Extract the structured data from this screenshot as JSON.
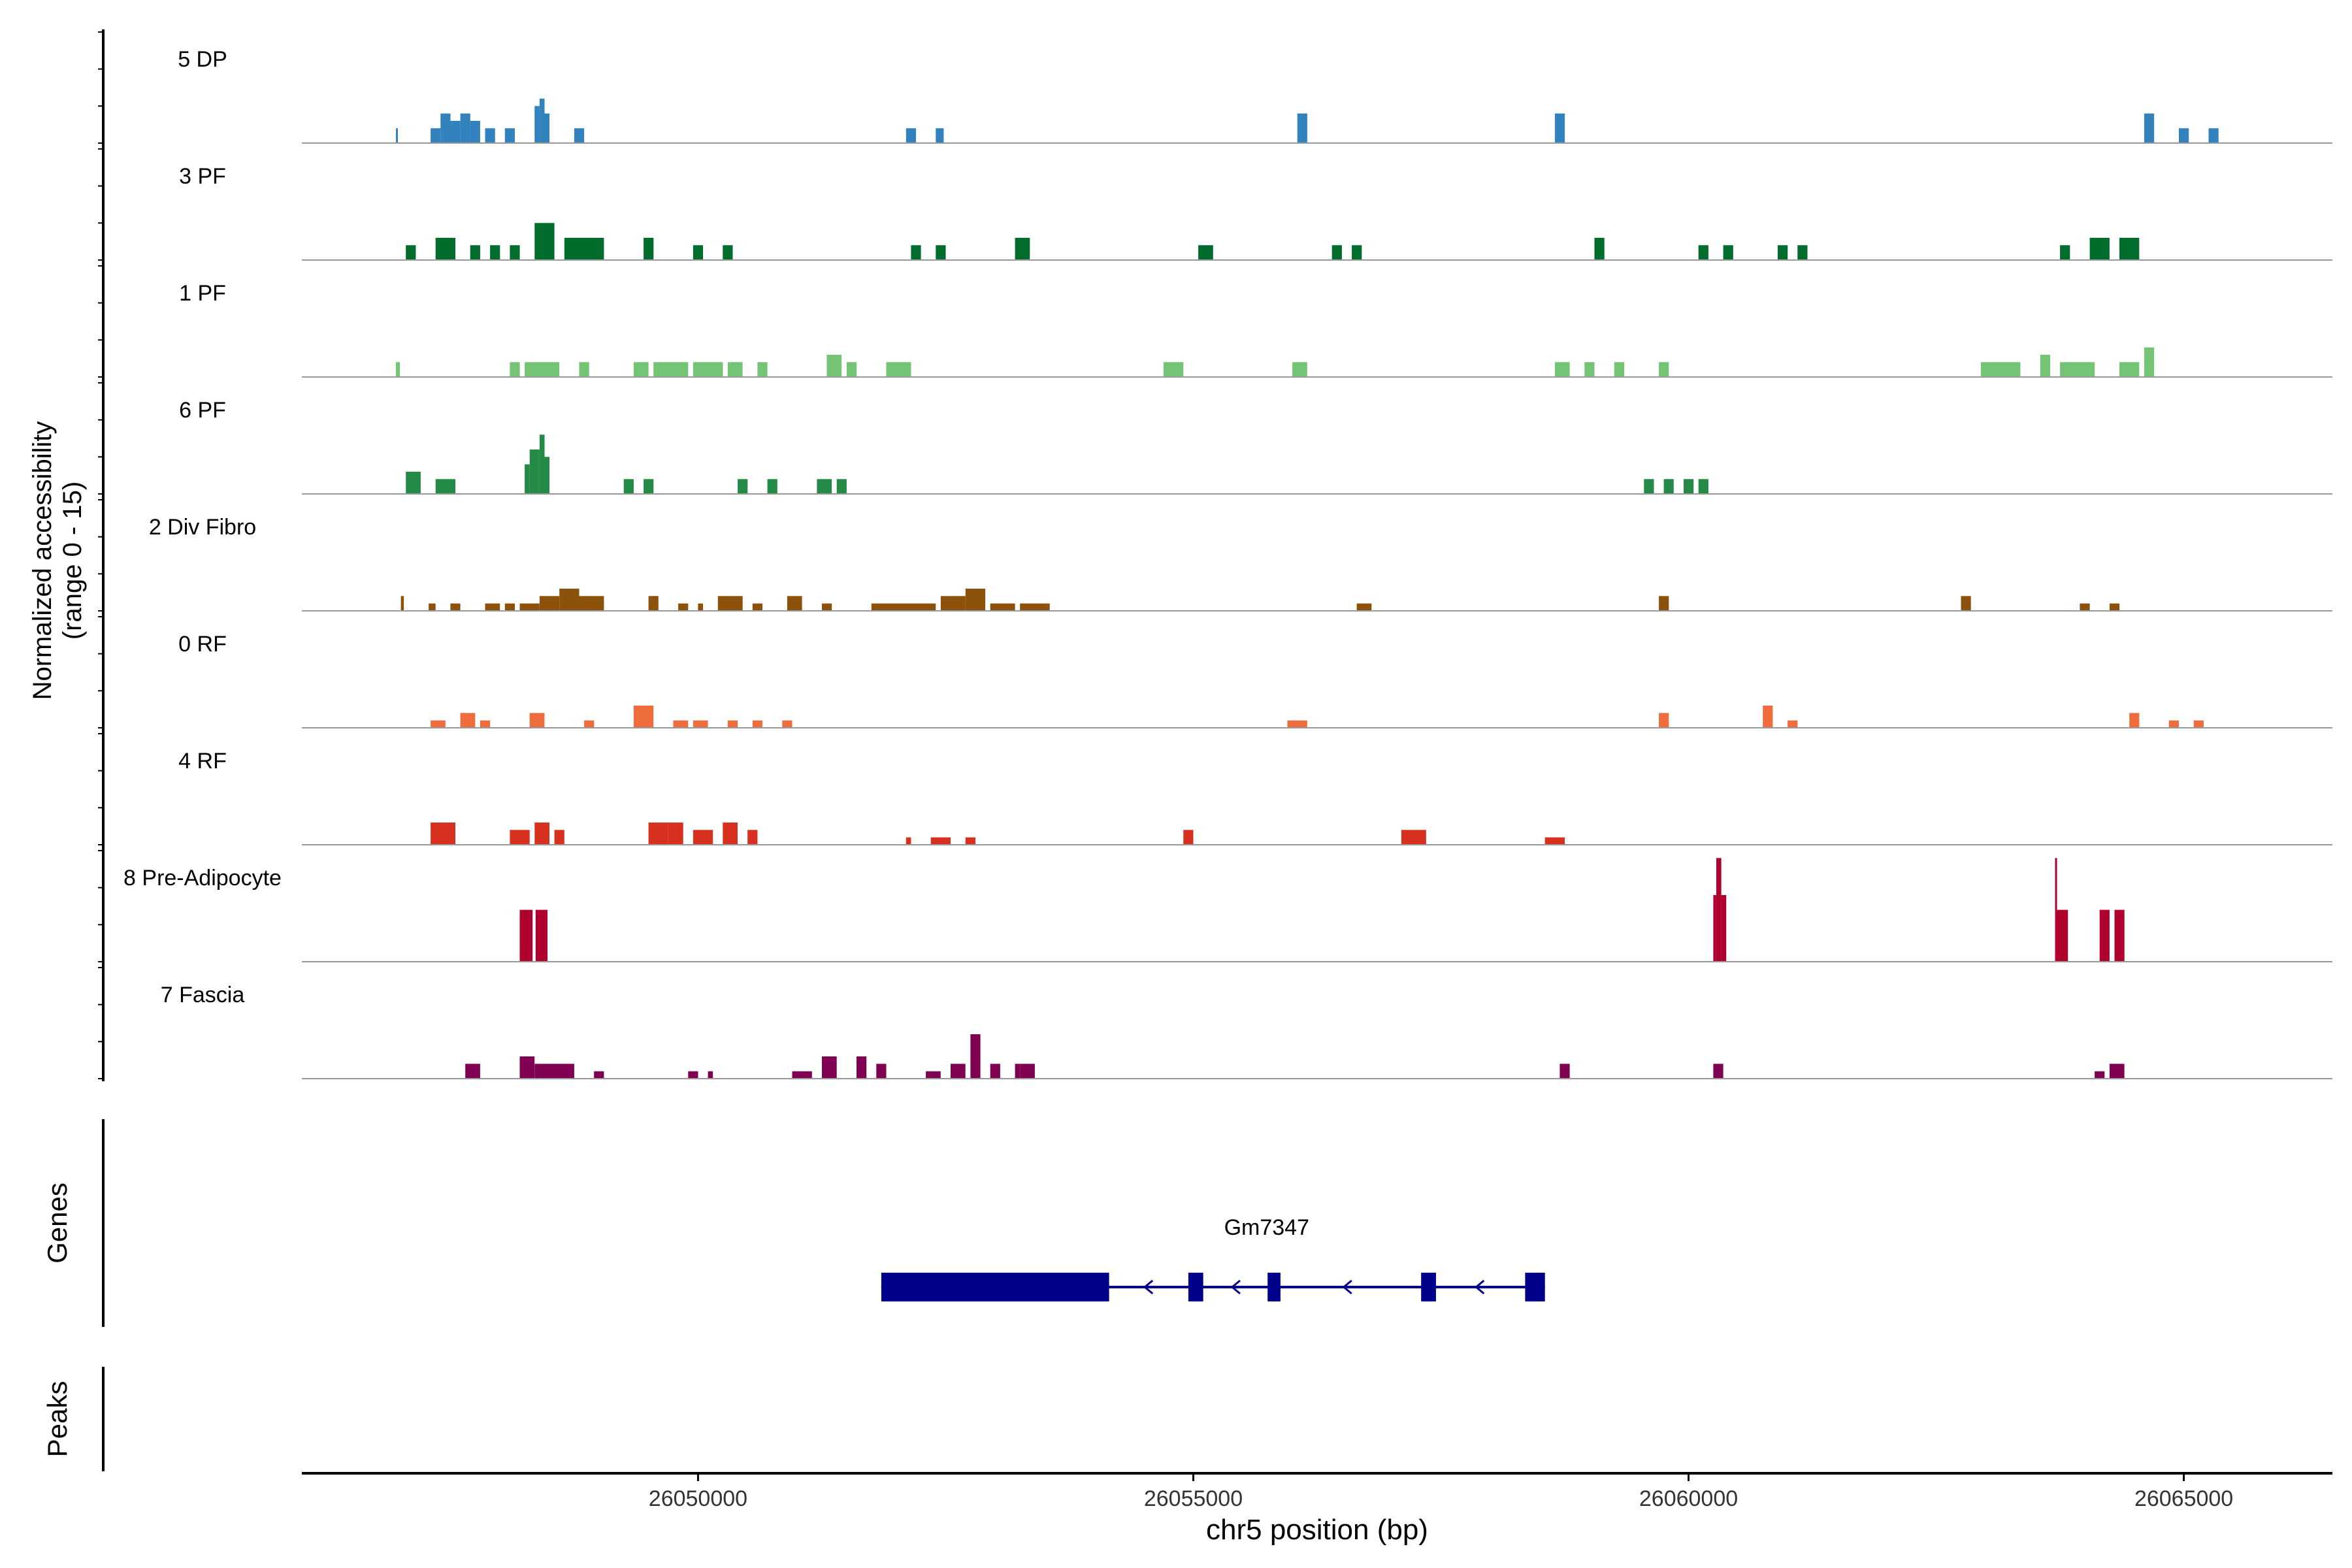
{
  "chart_data": {
    "type": "area",
    "title": "",
    "ylabel": "Normalized accessibility",
    "ylabel_range": "(range 0 - 15)",
    "ylim": [
      0,
      15
    ],
    "xlabel": "chr5 position (bp)",
    "xlim": [
      26046000,
      26066500
    ],
    "xticks": [
      26050000,
      26055000,
      26060000,
      26065000
    ],
    "xtick_labels": [
      "26050000",
      "26055000",
      "26060000",
      "26065000"
    ],
    "grid": false,
    "legend": "none",
    "tracks": [
      {
        "name": "5 DP",
        "color": "#3182bd",
        "segments": [
          [
            26046950,
            26046970,
            2
          ],
          [
            26047300,
            26047400,
            2
          ],
          [
            26047400,
            26047500,
            4
          ],
          [
            26047500,
            26047600,
            3
          ],
          [
            26047600,
            26047700,
            4
          ],
          [
            26047700,
            26047800,
            3
          ],
          [
            26047850,
            26047950,
            2
          ],
          [
            26048050,
            26048150,
            2
          ],
          [
            26048350,
            26048400,
            5
          ],
          [
            26048400,
            26048450,
            6
          ],
          [
            26048450,
            26048500,
            4
          ],
          [
            26048750,
            26048850,
            2
          ],
          [
            26052100,
            26052200,
            2
          ],
          [
            26052400,
            26052480,
            2
          ],
          [
            26056050,
            26056150,
            4
          ],
          [
            26058650,
            26058750,
            4
          ],
          [
            26064600,
            26064700,
            4
          ],
          [
            26064950,
            26065050,
            2
          ],
          [
            26065250,
            26065350,
            2
          ]
        ]
      },
      {
        "name": "3 PF",
        "color": "#006d2c",
        "segments": [
          [
            26047050,
            26047150,
            2
          ],
          [
            26047350,
            26047550,
            3
          ],
          [
            26047700,
            26047800,
            2
          ],
          [
            26047900,
            26048000,
            2
          ],
          [
            26048100,
            26048200,
            2
          ],
          [
            26048350,
            26048550,
            5
          ],
          [
            26048650,
            26048750,
            3
          ],
          [
            26048750,
            26049050,
            3
          ],
          [
            26049450,
            26049550,
            3
          ],
          [
            26049950,
            26050050,
            2
          ],
          [
            26050250,
            26050350,
            2
          ],
          [
            26052150,
            26052250,
            2
          ],
          [
            26052400,
            26052500,
            2
          ],
          [
            26053200,
            26053350,
            3
          ],
          [
            26055050,
            26055200,
            2
          ],
          [
            26056400,
            26056500,
            2
          ],
          [
            26056600,
            26056700,
            2
          ],
          [
            26059050,
            26059150,
            3
          ],
          [
            26060100,
            26060200,
            2
          ],
          [
            26060350,
            26060450,
            2
          ],
          [
            26060900,
            26061000,
            2
          ],
          [
            26061100,
            26061200,
            2
          ],
          [
            26063750,
            26063850,
            2
          ],
          [
            26064050,
            26064250,
            3
          ],
          [
            26064350,
            26064550,
            3
          ]
        ]
      },
      {
        "name": "1 PF",
        "color": "#74c476",
        "segments": [
          [
            26046950,
            26046990,
            2
          ],
          [
            26048100,
            26048200,
            2
          ],
          [
            26048250,
            26048600,
            2
          ],
          [
            26048800,
            26048900,
            2
          ],
          [
            26049350,
            26049500,
            2
          ],
          [
            26049550,
            26049900,
            2
          ],
          [
            26049950,
            26050250,
            2
          ],
          [
            26050300,
            26050450,
            2
          ],
          [
            26050600,
            26050700,
            2
          ],
          [
            26051300,
            26051450,
            3
          ],
          [
            26051500,
            26051600,
            2
          ],
          [
            26051900,
            26052150,
            2
          ],
          [
            26054700,
            26054900,
            2
          ],
          [
            26056000,
            26056150,
            2
          ],
          [
            26058650,
            26058800,
            2
          ],
          [
            26058950,
            26059050,
            2
          ],
          [
            26059250,
            26059350,
            2
          ],
          [
            26059700,
            26059800,
            2
          ],
          [
            26062950,
            26063350,
            2
          ],
          [
            26063550,
            26063650,
            3
          ],
          [
            26063750,
            26064100,
            2
          ],
          [
            26064350,
            26064550,
            2
          ],
          [
            26064600,
            26064700,
            4
          ]
        ]
      },
      {
        "name": "6 PF",
        "color": "#238b45",
        "segments": [
          [
            26047050,
            26047200,
            3
          ],
          [
            26047350,
            26047550,
            2
          ],
          [
            26048250,
            26048300,
            4
          ],
          [
            26048300,
            26048400,
            6
          ],
          [
            26048400,
            26048450,
            8
          ],
          [
            26048450,
            26048500,
            5
          ],
          [
            26049250,
            26049350,
            2
          ],
          [
            26049450,
            26049550,
            2
          ],
          [
            26050400,
            26050500,
            2
          ],
          [
            26050700,
            26050800,
            2
          ],
          [
            26051200,
            26051350,
            2
          ],
          [
            26051400,
            26051500,
            2
          ],
          [
            26059550,
            26059650,
            2
          ],
          [
            26059750,
            26059850,
            2
          ],
          [
            26059950,
            26060050,
            2
          ],
          [
            26060100,
            26060200,
            2
          ]
        ]
      },
      {
        "name": "2 Div Fibro",
        "color": "#8c510a",
        "segments": [
          [
            26047000,
            26047030,
            2
          ],
          [
            26047280,
            26047350,
            1
          ],
          [
            26047500,
            26047600,
            1
          ],
          [
            26047850,
            26048000,
            1
          ],
          [
            26048050,
            26048150,
            1
          ],
          [
            26048200,
            26048400,
            1
          ],
          [
            26048400,
            26048600,
            2
          ],
          [
            26048600,
            26048800,
            3
          ],
          [
            26048800,
            26049050,
            2
          ],
          [
            26049500,
            26049600,
            2
          ],
          [
            26049800,
            26049900,
            1
          ],
          [
            26050000,
            26050050,
            1
          ],
          [
            26050200,
            26050450,
            2
          ],
          [
            26050550,
            26050650,
            1
          ],
          [
            26050900,
            26051050,
            2
          ],
          [
            26051250,
            26051350,
            1
          ],
          [
            26051750,
            26052400,
            1
          ],
          [
            26052450,
            26052700,
            2
          ],
          [
            26052700,
            26052900,
            3
          ],
          [
            26052950,
            26053200,
            1
          ],
          [
            26053250,
            26053550,
            1
          ],
          [
            26056650,
            26056800,
            1
          ],
          [
            26059700,
            26059800,
            2
          ],
          [
            26062750,
            26062850,
            2
          ],
          [
            26063950,
            26064050,
            1
          ],
          [
            26064250,
            26064350,
            1
          ]
        ]
      },
      {
        "name": "0 RF",
        "color": "#ef6c3d",
        "segments": [
          [
            26047300,
            26047450,
            1
          ],
          [
            26047600,
            26047750,
            2
          ],
          [
            26047800,
            26047900,
            1
          ],
          [
            26048300,
            26048450,
            2
          ],
          [
            26048850,
            26048950,
            1
          ],
          [
            26049350,
            26049550,
            3
          ],
          [
            26049750,
            26049900,
            1
          ],
          [
            26049950,
            26050100,
            1
          ],
          [
            26050300,
            26050400,
            1
          ],
          [
            26050550,
            26050650,
            1
          ],
          [
            26050850,
            26050950,
            1
          ],
          [
            26055950,
            26056150,
            1
          ],
          [
            26059700,
            26059800,
            2
          ],
          [
            26060750,
            26060850,
            3
          ],
          [
            26061000,
            26061100,
            1
          ],
          [
            26064450,
            26064550,
            2
          ],
          [
            26064850,
            26064950,
            1
          ],
          [
            26065100,
            26065200,
            1
          ]
        ]
      },
      {
        "name": "4 RF",
        "color": "#d7301f",
        "segments": [
          [
            26047300,
            26047550,
            3
          ],
          [
            26048100,
            26048300,
            2
          ],
          [
            26048350,
            26048500,
            3
          ],
          [
            26048550,
            26048650,
            2
          ],
          [
            26049500,
            26049700,
            3
          ],
          [
            26049700,
            26049850,
            3
          ],
          [
            26049950,
            26050150,
            2
          ],
          [
            26050250,
            26050400,
            3
          ],
          [
            26050500,
            26050600,
            2
          ],
          [
            26052100,
            26052150,
            1
          ],
          [
            26052350,
            26052550,
            1
          ],
          [
            26052700,
            26052800,
            1
          ],
          [
            26054900,
            26055000,
            2
          ],
          [
            26057100,
            26057350,
            2
          ],
          [
            26058550,
            26058750,
            1
          ]
        ]
      },
      {
        "name": "8 Pre-Adipocyte",
        "color": "#b0002e",
        "segments": [
          [
            26048200,
            26048330,
            7
          ],
          [
            26048360,
            26048480,
            7
          ],
          [
            26060250,
            26060280,
            9
          ],
          [
            26060280,
            26060330,
            14
          ],
          [
            26060330,
            26060380,
            9
          ],
          [
            26063700,
            26063720,
            14
          ],
          [
            26063720,
            26063830,
            7
          ],
          [
            26064150,
            26064250,
            7
          ],
          [
            26064300,
            26064400,
            7
          ]
        ]
      },
      {
        "name": "7 Fascia",
        "color": "#800054",
        "segments": [
          [
            26047650,
            26047800,
            2
          ],
          [
            26048200,
            26048350,
            3
          ],
          [
            26048350,
            26048750,
            2
          ],
          [
            26048950,
            26049050,
            1
          ],
          [
            26049900,
            26050000,
            1
          ],
          [
            26050100,
            26050150,
            1
          ],
          [
            26050950,
            26051150,
            1
          ],
          [
            26051250,
            26051400,
            3
          ],
          [
            26051600,
            26051700,
            3
          ],
          [
            26051800,
            26051900,
            2
          ],
          [
            26052300,
            26052450,
            1
          ],
          [
            26052550,
            26052700,
            2
          ],
          [
            26052750,
            26052850,
            6
          ],
          [
            26052950,
            26053050,
            2
          ],
          [
            26053200,
            26053250,
            2
          ],
          [
            26053250,
            26053400,
            2
          ],
          [
            26058700,
            26058800,
            2
          ],
          [
            26060250,
            26060350,
            2
          ],
          [
            26064100,
            26064200,
            1
          ],
          [
            26064250,
            26064400,
            2
          ]
        ]
      }
    ],
    "genes": [
      {
        "name": "Gm7347",
        "color": "#00008b",
        "strand": "-",
        "start": 26051850,
        "end": 26058550,
        "exons": [
          [
            26051850,
            26054150
          ],
          [
            26054950,
            26055100
          ],
          [
            26055750,
            26055880
          ],
          [
            26057300,
            26057450
          ],
          [
            26058350,
            26058550
          ]
        ]
      }
    ],
    "panel_labels": {
      "genes": "Genes",
      "peaks": "Peaks"
    }
  },
  "colors": {
    "axis": "#000000",
    "baseline": "#999999",
    "label_text": "#000000"
  }
}
